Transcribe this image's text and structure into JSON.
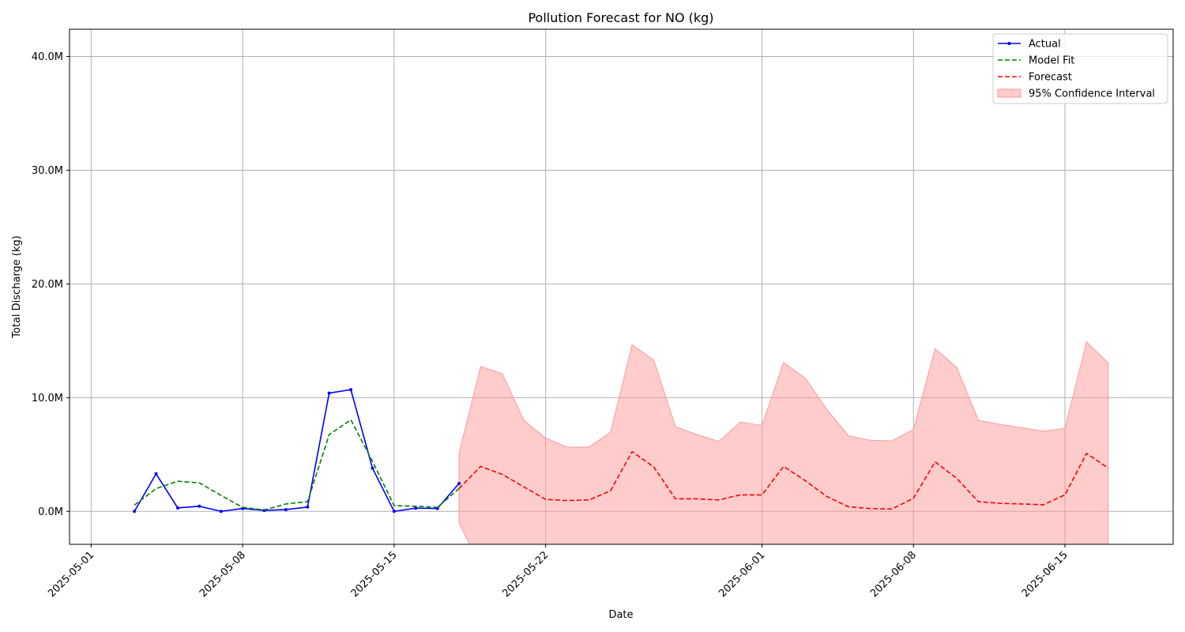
{
  "chart_data": {
    "type": "line",
    "title": "Pollution Forecast for NO (kg)",
    "xlabel": "Date",
    "ylabel": "Total Discharge (kg)",
    "xlim": [
      "2025-04-30",
      "2025-06-20"
    ],
    "ylim": [
      -2900000,
      42400000
    ],
    "x_ticks": [
      "2025-05-01",
      "2025-05-08",
      "2025-05-15",
      "2025-05-22",
      "2025-06-01",
      "2025-06-08",
      "2025-06-15"
    ],
    "y_ticks": [
      0,
      10000000,
      20000000,
      30000000,
      40000000
    ],
    "y_tick_labels": [
      "0.0M",
      "10.0M",
      "20.0M",
      "30.0M",
      "40.0M"
    ],
    "grid": true,
    "legend_position": "top-right",
    "series": [
      {
        "name": "Actual",
        "style": "solid-markers",
        "color": "#0000ff",
        "x": [
          "2025-05-03",
          "2025-05-04",
          "2025-05-05",
          "2025-05-06",
          "2025-05-07",
          "2025-05-08",
          "2025-05-09",
          "2025-05-10",
          "2025-05-11",
          "2025-05-12",
          "2025-05-13",
          "2025-05-14",
          "2025-05-15",
          "2025-05-16",
          "2025-05-17",
          "2025-05-18"
        ],
        "values": [
          0,
          3300000,
          300000,
          450000,
          0,
          250000,
          80000,
          150000,
          380000,
          10400000,
          10700000,
          3800000,
          0,
          280000,
          250000,
          2450000
        ]
      },
      {
        "name": "Model Fit",
        "style": "dashed",
        "color": "#008000",
        "x": [
          "2025-05-03",
          "2025-05-04",
          "2025-05-05",
          "2025-05-06",
          "2025-05-07",
          "2025-05-08",
          "2025-05-09",
          "2025-05-10",
          "2025-05-11",
          "2025-05-12",
          "2025-05-13",
          "2025-05-14",
          "2025-05-15",
          "2025-05-16",
          "2025-05-17",
          "2025-05-18"
        ],
        "values": [
          550000,
          2000000,
          2650000,
          2500000,
          1400000,
          350000,
          120000,
          650000,
          850000,
          6750000,
          8050000,
          4400000,
          500000,
          450000,
          350000,
          2000000
        ]
      },
      {
        "name": "Forecast",
        "style": "dashed",
        "color": "#ff0000",
        "x": [
          "2025-05-18",
          "2025-05-19",
          "2025-05-20",
          "2025-05-21",
          "2025-05-22",
          "2025-05-23",
          "2025-05-24",
          "2025-05-25",
          "2025-05-26",
          "2025-05-27",
          "2025-05-28",
          "2025-05-29",
          "2025-05-30",
          "2025-05-31",
          "2025-06-01",
          "2025-06-02",
          "2025-06-03",
          "2025-06-04",
          "2025-06-05",
          "2025-06-06",
          "2025-06-07",
          "2025-06-08",
          "2025-06-09",
          "2025-06-10",
          "2025-06-11",
          "2025-06-12",
          "2025-06-13",
          "2025-06-14",
          "2025-06-15",
          "2025-06-16",
          "2025-06-17"
        ],
        "values": [
          2000000,
          3950000,
          3250000,
          2150000,
          1050000,
          950000,
          1000000,
          1800000,
          5250000,
          3900000,
          1100000,
          1100000,
          1000000,
          1450000,
          1450000,
          3950000,
          2700000,
          1300000,
          400000,
          250000,
          200000,
          1150000,
          4350000,
          2900000,
          850000,
          700000,
          650000,
          580000,
          1450000,
          5100000,
          3800000
        ]
      },
      {
        "name": "95% Confidence Interval",
        "style": "band",
        "color": "#ff9999",
        "x": [
          "2025-05-18",
          "2025-05-19",
          "2025-05-20",
          "2025-05-21",
          "2025-05-22",
          "2025-05-23",
          "2025-05-24",
          "2025-05-25",
          "2025-05-26",
          "2025-05-27",
          "2025-05-28",
          "2025-05-29",
          "2025-05-30",
          "2025-05-31",
          "2025-06-01",
          "2025-06-02",
          "2025-06-03",
          "2025-06-04",
          "2025-06-05",
          "2025-06-06",
          "2025-06-07",
          "2025-06-08",
          "2025-06-09",
          "2025-06-10",
          "2025-06-11",
          "2025-06-12",
          "2025-06-13",
          "2025-06-14",
          "2025-06-15",
          "2025-06-16",
          "2025-06-17"
        ],
        "upper": [
          5100000,
          12750000,
          12100000,
          8000000,
          6450000,
          5650000,
          5650000,
          6950000,
          14650000,
          13300000,
          7450000,
          6750000,
          6150000,
          7850000,
          7550000,
          13100000,
          11700000,
          8950000,
          6650000,
          6250000,
          6200000,
          7200000,
          14300000,
          12650000,
          8000000,
          7650000,
          7350000,
          7050000,
          7300000,
          14900000,
          13050000
        ],
        "lower": [
          -1000000,
          -5000000,
          -5000000,
          -5000000,
          -5000000,
          -5000000,
          -5000000,
          -5000000,
          -5000000,
          -5000000,
          -5000000,
          -5000000,
          -5000000,
          -5000000,
          -5000000,
          -5000000,
          -5000000,
          -5000000,
          -5000000,
          -5000000,
          -5000000,
          -5000000,
          -5000000,
          -5000000,
          -5000000,
          -5000000,
          -5000000,
          -5000000,
          -5000000,
          -5000000,
          -5000000
        ]
      }
    ]
  }
}
